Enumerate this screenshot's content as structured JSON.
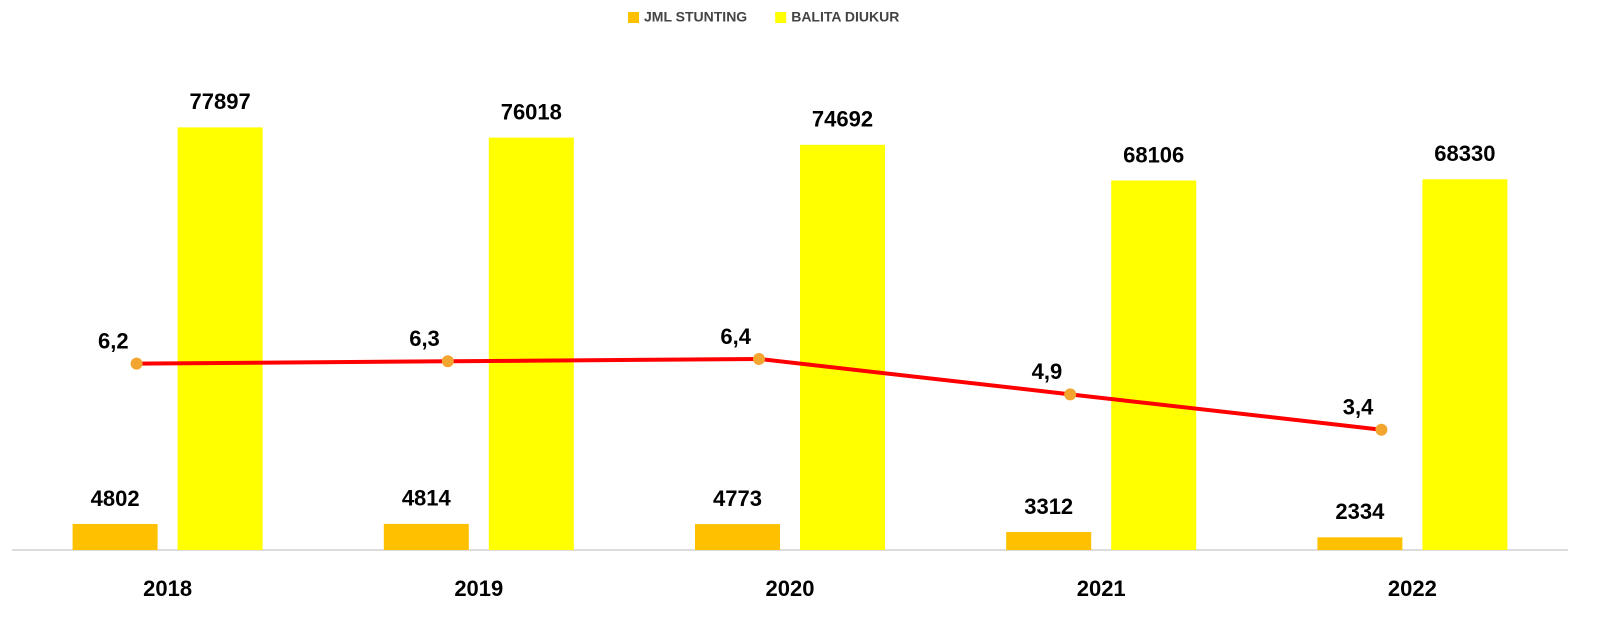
{
  "chart_data": {
    "type": "bar-line",
    "categories": [
      "2018",
      "2019",
      "2020",
      "2021",
      "2022"
    ],
    "series": [
      {
        "name": "JML STUNTING",
        "color": "#ffc000",
        "values": [
          4802,
          4814,
          4773,
          3312,
          2334
        ]
      },
      {
        "name": "BALITA DIUKUR",
        "color": "#ffff00",
        "values": [
          77897,
          76018,
          74692,
          68106,
          68330
        ]
      },
      {
        "type": "line",
        "axis": "y2",
        "color": "#ff0000",
        "marker_color": "#f2a52f",
        "values": [
          6.2,
          6.3,
          6.4,
          4.9,
          3.4
        ],
        "value_labels": [
          "6,2",
          "6,3",
          "6,4",
          "4,9",
          "3,4"
        ]
      }
    ],
    "ylim": [
      0,
      80000
    ],
    "y2lim": [
      -1.7,
      16.7
    ],
    "legend": "top"
  }
}
